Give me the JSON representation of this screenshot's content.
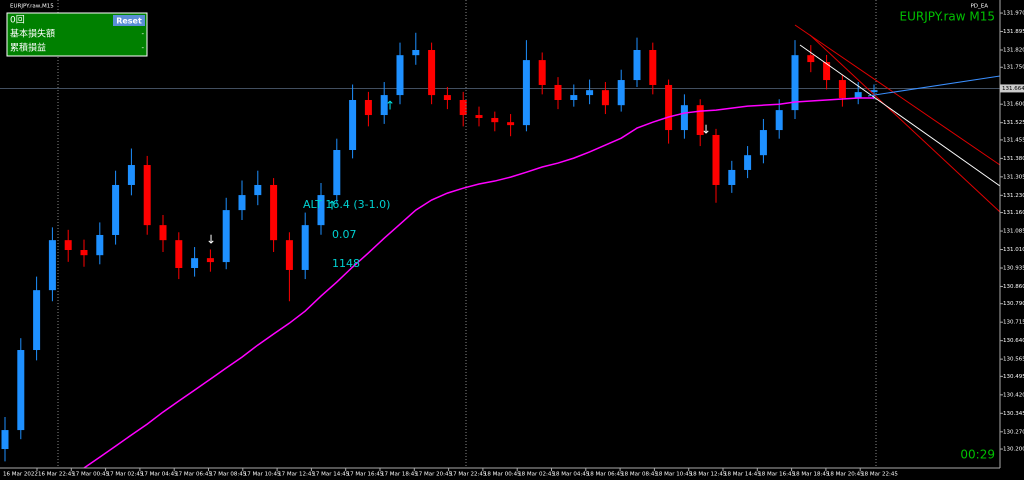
{
  "window": {
    "title": "EURJPY.raw,M15",
    "ea_label": "PD_EA",
    "symbol_label": "EURJPY.raw M15",
    "timer": "00:29"
  },
  "panel": {
    "count": "0回",
    "reset": "Reset",
    "rows": [
      {
        "label": "基本損失額",
        "value": "-"
      },
      {
        "label": "累積損益",
        "value": "-"
      }
    ]
  },
  "indicator": {
    "line1": "ALT 16.4 (3-1.0)",
    "line2": "0.07",
    "line3": "1148"
  },
  "chart_data": {
    "type": "candlestick",
    "ylim": [
      130.123,
      132.023
    ],
    "yticks": [
      {
        "value": 131.97,
        "label": "131.970"
      },
      {
        "value": 131.895,
        "label": "131.895"
      },
      {
        "value": 131.82,
        "label": "131.820"
      },
      {
        "value": 131.75,
        "label": "131.750"
      },
      {
        "value": 131.6,
        "label": "131.600"
      },
      {
        "value": 131.525,
        "label": "131.525"
      },
      {
        "value": 131.455,
        "label": "131.455"
      },
      {
        "value": 131.38,
        "label": "131.380"
      },
      {
        "value": 131.305,
        "label": "131.305"
      },
      {
        "value": 131.23,
        "label": "131.230"
      },
      {
        "value": 131.16,
        "label": "131.160"
      },
      {
        "value": 131.085,
        "label": "131.085"
      },
      {
        "value": 131.01,
        "label": "131.010"
      },
      {
        "value": 130.935,
        "label": "130.935"
      },
      {
        "value": 130.86,
        "label": "130.860"
      },
      {
        "value": 130.79,
        "label": "130.790"
      },
      {
        "value": 130.715,
        "label": "130.715"
      },
      {
        "value": 130.64,
        "label": "130.640"
      },
      {
        "value": 130.565,
        "label": "130.565"
      },
      {
        "value": 130.495,
        "label": "130.495"
      },
      {
        "value": 130.42,
        "label": "130.420"
      },
      {
        "value": 130.345,
        "label": "130.345"
      },
      {
        "value": 130.27,
        "label": "130.270"
      },
      {
        "value": 130.2,
        "label": "130.200"
      }
    ],
    "current_price": {
      "value": 131.664,
      "label": "131.664"
    },
    "time_labels": [
      "16 Mar 2022",
      "16 Mar 22:45",
      "17 Mar 00:45",
      "17 Mar 02:45",
      "17 Mar 04:45",
      "17 Mar 06:45",
      "17 Mar 08:45",
      "17 Mar 10:45",
      "17 Mar 12:45",
      "17 Mar 14:45",
      "17 Mar 16:45",
      "17 Mar 18:45",
      "17 Mar 20:45",
      "17 Mar 22:45",
      "18 Mar 00:45",
      "18 Mar 02:45",
      "18 Mar 04:45",
      "18 Mar 06:45",
      "18 Mar 08:45",
      "18 Mar 10:45",
      "18 Mar 12:45",
      "18 Mar 14:45",
      "18 Mar 16:45",
      "18 Mar 18:45",
      "18 Mar 20:45",
      "18 Mar 22:45"
    ],
    "bull_color": "#1e90ff",
    "bear_color": "#ff0000",
    "candles": [
      [
        130.2,
        130.33,
        130.15,
        130.277
      ],
      [
        130.277,
        130.65,
        130.24,
        130.602
      ],
      [
        130.602,
        130.9,
        130.56,
        130.845
      ],
      [
        130.845,
        131.1,
        130.8,
        131.048
      ],
      [
        131.048,
        131.09,
        130.96,
        131.008
      ],
      [
        131.008,
        131.05,
        130.94,
        130.987
      ],
      [
        130.987,
        131.12,
        130.95,
        131.069
      ],
      [
        131.069,
        131.33,
        131.03,
        131.272
      ],
      [
        131.272,
        131.42,
        131.23,
        131.353
      ],
      [
        131.353,
        131.39,
        131.07,
        131.109
      ],
      [
        131.109,
        131.15,
        131.0,
        131.048
      ],
      [
        131.048,
        131.08,
        130.89,
        130.935
      ],
      [
        130.935,
        131.02,
        130.9,
        130.975
      ],
      [
        130.975,
        131.01,
        130.92,
        130.959
      ],
      [
        130.959,
        131.22,
        130.93,
        131.17
      ],
      [
        131.17,
        131.29,
        131.13,
        131.231
      ],
      [
        131.231,
        131.33,
        131.19,
        131.272
      ],
      [
        131.272,
        131.3,
        131.0,
        131.048
      ],
      [
        131.048,
        131.08,
        130.8,
        130.927
      ],
      [
        130.927,
        131.16,
        130.89,
        131.109
      ],
      [
        131.109,
        131.28,
        131.07,
        131.231
      ],
      [
        131.231,
        131.46,
        131.2,
        131.414
      ],
      [
        131.414,
        131.68,
        131.38,
        131.617
      ],
      [
        131.617,
        131.65,
        131.51,
        131.556
      ],
      [
        131.556,
        131.69,
        131.52,
        131.637
      ],
      [
        131.637,
        131.85,
        131.6,
        131.799
      ],
      [
        131.799,
        131.89,
        131.76,
        131.82
      ],
      [
        131.82,
        131.85,
        131.6,
        131.637
      ],
      [
        131.637,
        131.67,
        131.58,
        131.617
      ],
      [
        131.617,
        131.65,
        131.51,
        131.556
      ],
      [
        131.556,
        131.59,
        131.51,
        131.544
      ],
      [
        131.544,
        131.57,
        131.49,
        131.527
      ],
      [
        131.527,
        131.56,
        131.47,
        131.515
      ],
      [
        131.515,
        131.86,
        131.49,
        131.779
      ],
      [
        131.779,
        131.81,
        131.64,
        131.678
      ],
      [
        131.678,
        131.71,
        131.58,
        131.617
      ],
      [
        131.617,
        131.68,
        131.59,
        131.637
      ],
      [
        131.637,
        131.7,
        131.6,
        131.657
      ],
      [
        131.657,
        131.69,
        131.56,
        131.596
      ],
      [
        131.596,
        131.74,
        131.57,
        131.698
      ],
      [
        131.698,
        131.87,
        131.67,
        131.82
      ],
      [
        131.82,
        131.85,
        131.64,
        131.678
      ],
      [
        131.678,
        131.7,
        131.44,
        131.495
      ],
      [
        131.495,
        131.64,
        131.46,
        131.596
      ],
      [
        131.596,
        131.62,
        131.43,
        131.475
      ],
      [
        131.475,
        131.5,
        131.2,
        131.272
      ],
      [
        131.272,
        131.37,
        131.24,
        131.333
      ],
      [
        131.333,
        131.43,
        131.3,
        131.393
      ],
      [
        131.393,
        131.54,
        131.36,
        131.495
      ],
      [
        131.495,
        131.62,
        131.46,
        131.576
      ],
      [
        131.576,
        131.86,
        131.54,
        131.799
      ],
      [
        131.799,
        131.84,
        131.73,
        131.771
      ],
      [
        131.771,
        131.8,
        131.66,
        131.698
      ],
      [
        131.698,
        131.72,
        131.59,
        131.625
      ],
      [
        131.625,
        131.69,
        131.6,
        131.649
      ],
      [
        131.649,
        131.68,
        131.62,
        131.657
      ]
    ],
    "ma_color": "#ff00ff",
    "ma": [
      null,
      null,
      null,
      null,
      null,
      130.123,
      130.167,
      130.212,
      130.257,
      130.301,
      130.35,
      130.395,
      130.439,
      130.484,
      130.529,
      130.573,
      130.622,
      130.667,
      130.711,
      130.76,
      130.821,
      130.878,
      130.939,
      130.996,
      131.056,
      131.113,
      131.17,
      131.211,
      131.239,
      131.259,
      131.276,
      131.288,
      131.304,
      131.324,
      131.345,
      131.361,
      131.381,
      131.406,
      131.434,
      131.462,
      131.503,
      131.527,
      131.548,
      131.564,
      131.572,
      131.576,
      131.584,
      131.592,
      131.596,
      131.6,
      131.609,
      131.613,
      131.617,
      131.621,
      131.625,
      131.625
    ]
  }
}
